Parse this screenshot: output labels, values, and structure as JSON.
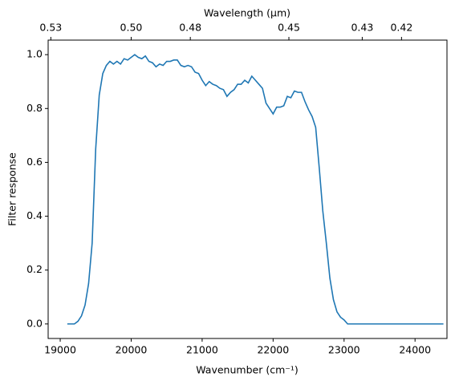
{
  "chart_data": {
    "type": "line",
    "xlabel": "Wavenumber (cm⁻¹)",
    "ylabel": "Filter response",
    "x2label": "Wavelength (μm)",
    "x": [
      19100,
      19200,
      19250,
      19300,
      19350,
      19400,
      19450,
      19500,
      19550,
      19600,
      19650,
      19700,
      19750,
      19800,
      19850,
      19900,
      19950,
      20000,
      20050,
      20100,
      20150,
      20200,
      20250,
      20300,
      20350,
      20400,
      20450,
      20500,
      20550,
      20600,
      20650,
      20700,
      20750,
      20800,
      20850,
      20900,
      20950,
      21000,
      21050,
      21100,
      21150,
      21200,
      21250,
      21300,
      21350,
      21400,
      21450,
      21500,
      21550,
      21600,
      21650,
      21700,
      21750,
      21800,
      21850,
      21900,
      21950,
      22000,
      22050,
      22100,
      22150,
      22200,
      22250,
      22300,
      22350,
      22400,
      22450,
      22500,
      22550,
      22600,
      22650,
      22700,
      22750,
      22800,
      22850,
      22900,
      22950,
      23000,
      23050,
      23500,
      24000,
      24400
    ],
    "series": [
      {
        "name": "Filter response",
        "color": "#1f77b4",
        "values": [
          0,
          0,
          0.01,
          0.03,
          0.07,
          0.15,
          0.3,
          0.65,
          0.85,
          0.93,
          0.96,
          0.975,
          0.965,
          0.975,
          0.965,
          0.985,
          0.98,
          0.99,
          1.0,
          0.99,
          0.985,
          0.995,
          0.975,
          0.97,
          0.955,
          0.965,
          0.96,
          0.975,
          0.975,
          0.98,
          0.98,
          0.96,
          0.955,
          0.96,
          0.955,
          0.935,
          0.93,
          0.905,
          0.885,
          0.9,
          0.89,
          0.885,
          0.875,
          0.87,
          0.845,
          0.86,
          0.87,
          0.89,
          0.89,
          0.905,
          0.895,
          0.92,
          0.905,
          0.89,
          0.875,
          0.82,
          0.8,
          0.78,
          0.805,
          0.805,
          0.81,
          0.845,
          0.84,
          0.865,
          0.86,
          0.86,
          0.825,
          0.795,
          0.77,
          0.73,
          0.58,
          0.42,
          0.3,
          0.17,
          0.09,
          0.045,
          0.025,
          0.015,
          0,
          0,
          0,
          0
        ]
      }
    ],
    "xlim": [
      18830,
      24450
    ],
    "ylim": [
      -0.054,
      1.054
    ],
    "xticks": [
      19000,
      20000,
      21000,
      22000,
      23000,
      24000
    ],
    "yticks": [
      {
        "value": 0,
        "label": "0.0"
      },
      {
        "value": 0.2,
        "label": "0.2"
      },
      {
        "value": 0.4,
        "label": "0.4"
      },
      {
        "value": 0.6,
        "label": "0.6"
      },
      {
        "value": 0.8,
        "label": "0.8"
      },
      {
        "value": 1,
        "label": "1.0"
      }
    ],
    "x2ticks": [
      {
        "value": 0.53,
        "label": "0.53"
      },
      {
        "value": 0.5,
        "label": "0.50"
      },
      {
        "value": 0.48,
        "label": "0.48"
      },
      {
        "value": 0.45,
        "label": "0.45"
      },
      {
        "value": 0.43,
        "label": "0.43"
      },
      {
        "value": 0.42,
        "label": "0.42"
      }
    ]
  }
}
